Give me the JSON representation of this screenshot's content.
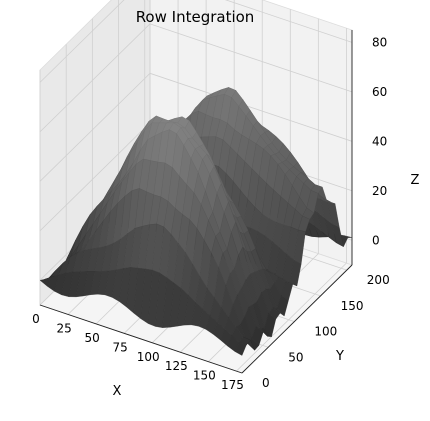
{
  "chart_data": {
    "type": "surface",
    "title": "Row Integration",
    "xlabel": "X",
    "ylabel": "Y",
    "zlabel": "Z",
    "xlim": [
      0,
      180
    ],
    "ylim": [
      0,
      210
    ],
    "zlim": [
      -10,
      85
    ],
    "x_ticks": [
      0,
      25,
      50,
      75,
      100,
      125,
      150,
      175
    ],
    "y_ticks": [
      0,
      50,
      100,
      150,
      200
    ],
    "z_ticks": [
      0,
      20,
      40,
      60,
      80
    ],
    "grid": true,
    "colormap": "gray",
    "pane_color": "#f2f2f2",
    "grid_color": "#d0d0d0",
    "surface_summary": {
      "description_of_shape": "approximate ridge values read from the rendered surface",
      "x_samples": [
        0,
        25,
        50,
        75,
        100,
        125,
        150,
        175
      ],
      "ridge_low_y_z": [
        -8,
        20,
        45,
        70,
        75,
        60,
        30,
        -8
      ],
      "ridge_high_y_z": [
        -5,
        15,
        35,
        55,
        60,
        50,
        40,
        30
      ],
      "valley_y": 105,
      "valley_z": 5
    }
  }
}
